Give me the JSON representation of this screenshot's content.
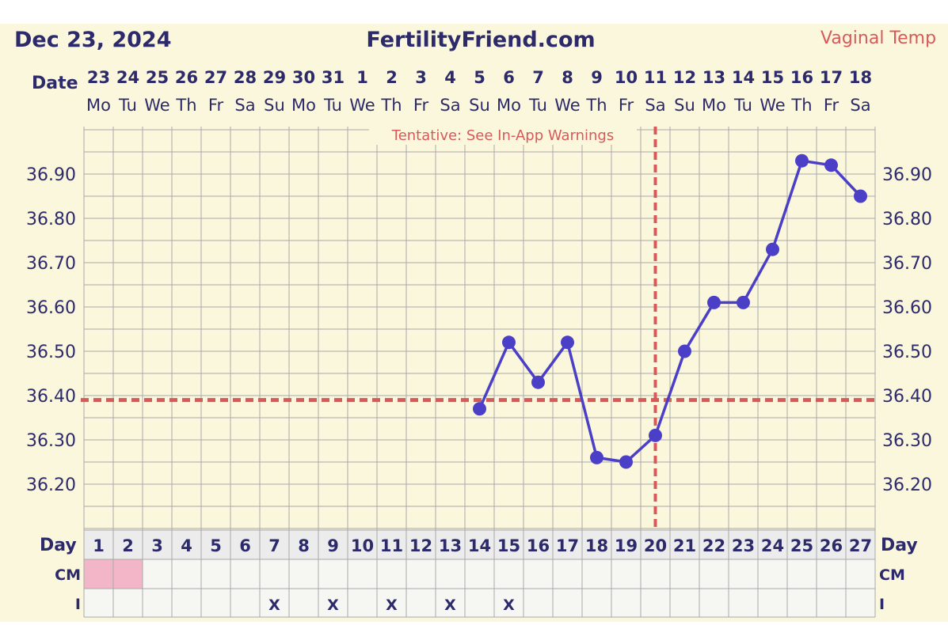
{
  "header": {
    "date": "Dec 23, 2024",
    "site": "FertilityFriend.com",
    "temp_label": "Vaginal Temp"
  },
  "labels": {
    "date": "Date",
    "day": "Day",
    "cm": "CM",
    "i": "I",
    "tentative": "Tentative: See In-App Warnings"
  },
  "colors": {
    "background": "#fbf7dc",
    "grid": "#a9a9a9",
    "line": "#4b3fc8",
    "coverline": "#d75a5a",
    "text": "#2d2a6b",
    "cm_pink": "#f3b6c9",
    "row_bg": "#f6f6f3"
  },
  "chart_data": {
    "type": "line",
    "dates": [
      "23",
      "24",
      "25",
      "26",
      "27",
      "28",
      "29",
      "30",
      "31",
      "1",
      "2",
      "3",
      "4",
      "5",
      "6",
      "7",
      "8",
      "9",
      "10",
      "11",
      "12",
      "13",
      "14",
      "15",
      "16",
      "17",
      "18"
    ],
    "weekdays": [
      "Mo",
      "Tu",
      "We",
      "Th",
      "Fr",
      "Sa",
      "Su",
      "Mo",
      "Tu",
      "We",
      "Th",
      "Fr",
      "Sa",
      "Su",
      "Mo",
      "Tu",
      "We",
      "Th",
      "Fr",
      "Sa",
      "Su",
      "Mo",
      "Tu",
      "We",
      "Th",
      "Fr",
      "Sa"
    ],
    "days": [
      "1",
      "2",
      "3",
      "4",
      "5",
      "6",
      "7",
      "8",
      "9",
      "10",
      "11",
      "12",
      "13",
      "14",
      "15",
      "16",
      "17",
      "18",
      "19",
      "20",
      "21",
      "22",
      "23",
      "24",
      "25",
      "26",
      "27"
    ],
    "temps": [
      {
        "day": 14,
        "value": 36.37
      },
      {
        "day": 15,
        "value": 36.52
      },
      {
        "day": 16,
        "value": 36.43
      },
      {
        "day": 17,
        "value": 36.52
      },
      {
        "day": 18,
        "value": 36.26
      },
      {
        "day": 19,
        "value": 36.25
      },
      {
        "day": 20,
        "value": 36.31
      },
      {
        "day": 21,
        "value": 36.5
      },
      {
        "day": 22,
        "value": 36.61
      },
      {
        "day": 23,
        "value": 36.61
      },
      {
        "day": 24,
        "value": 36.73
      },
      {
        "day": 25,
        "value": 36.93
      },
      {
        "day": 26,
        "value": 36.92
      },
      {
        "day": 27,
        "value": 36.85
      }
    ],
    "yticks": [
      "36.90",
      "36.80",
      "36.70",
      "36.60",
      "36.50",
      "36.40",
      "36.30",
      "36.20"
    ],
    "coverline": 36.39,
    "ovulation_day": 20,
    "cm_marked_days": [
      1,
      2
    ],
    "i_marked_days": [
      7,
      9,
      11,
      13,
      15
    ],
    "i_mark": "X"
  }
}
